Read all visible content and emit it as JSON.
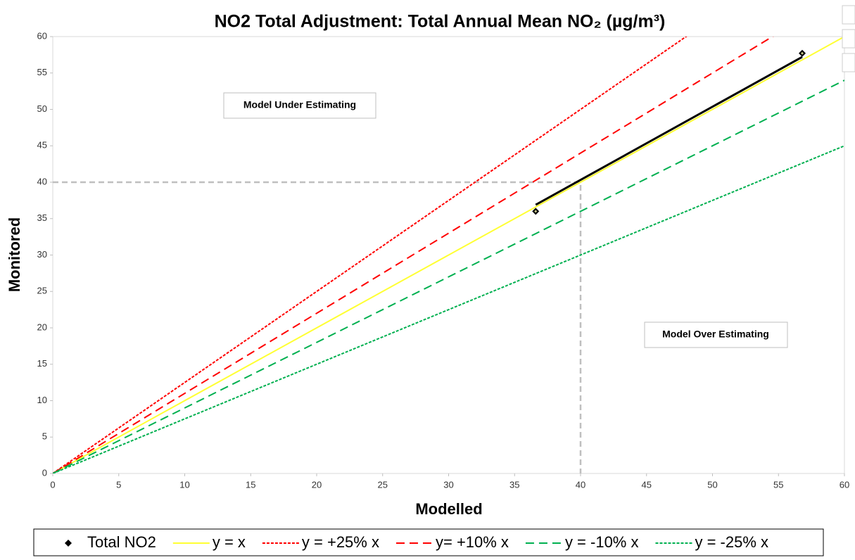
{
  "chart_data": {
    "type": "scatter",
    "title": "NO2 Total Adjustment: Total Annual Mean NO₂ (µg/m³)",
    "x_label": "Modelled",
    "y_label": "Monitored",
    "xlim": [
      0,
      60
    ],
    "ylim": [
      0,
      60
    ],
    "xticks": [
      0,
      5,
      10,
      15,
      20,
      25,
      30,
      35,
      40,
      45,
      50,
      55,
      60
    ],
    "yticks": [
      0,
      5,
      10,
      15,
      20,
      25,
      30,
      35,
      40,
      45,
      50,
      55,
      60
    ],
    "reference": {
      "x": 40,
      "y": 40,
      "color": "#bfbfbf"
    },
    "annotations": [
      "Model Under Estimating",
      "Model Over Estimating"
    ],
    "series": [
      {
        "name": "Total NO2",
        "type": "scatter",
        "color": "#000000",
        "x": [
          36.6,
          56.8
        ],
        "values": [
          36.0,
          57.7
        ]
      },
      {
        "name": "y = x",
        "type": "line",
        "style": "solid",
        "color": "#ffff33",
        "x": [
          0,
          60
        ],
        "values": [
          0,
          60
        ]
      },
      {
        "name": "y = +25% x",
        "type": "line",
        "style": "dotted",
        "color": "#ff0000",
        "x": [
          0,
          60
        ],
        "values": [
          0,
          75
        ]
      },
      {
        "name": "y= +10% x",
        "type": "line",
        "style": "dashed",
        "color": "#ff0000",
        "x": [
          0,
          60
        ],
        "values": [
          0,
          66
        ]
      },
      {
        "name": "y = -10% x",
        "type": "line",
        "style": "dashed",
        "color": "#00b050",
        "x": [
          0,
          60
        ],
        "values": [
          0,
          54
        ]
      },
      {
        "name": "y = -25% x",
        "type": "line",
        "style": "dotted",
        "color": "#00b050",
        "x": [
          0,
          60
        ],
        "values": [
          0,
          45
        ]
      }
    ],
    "trendline": {
      "color": "#000000",
      "x": [
        36.6,
        56.8
      ],
      "values": [
        36.9,
        57.2
      ]
    },
    "legend": "bottom"
  }
}
